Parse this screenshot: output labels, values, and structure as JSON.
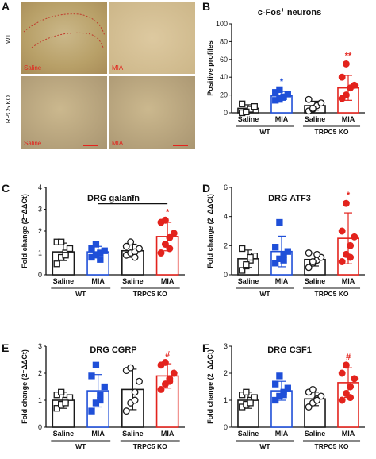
{
  "panel_a": {
    "label": "A",
    "row_labels": [
      "WT",
      "TRPC5 KO"
    ],
    "image_labels": [
      "Saline",
      "MIA",
      "Saline",
      "MIA"
    ]
  },
  "colors": {
    "black": "#1a1a1a",
    "blue": "#1f4fd8",
    "red": "#e3231d"
  },
  "chart_data": [
    {
      "panel": "B",
      "type": "bar",
      "title": "c-Fos+ neurons",
      "ylabel": "Positive profiles",
      "ylim": [
        0,
        100
      ],
      "yticks": [
        0,
        20,
        40,
        60,
        80,
        100
      ],
      "categories": [
        "Saline",
        "MIA",
        "Saline",
        "MIA"
      ],
      "groups": [
        "WT",
        "TRPC5 KO"
      ],
      "values": [
        5,
        19,
        8,
        28
      ],
      "errors": [
        4,
        5,
        5,
        14
      ],
      "points": [
        [
          0,
          2,
          4,
          7,
          10,
          1
        ],
        [
          14,
          15,
          18,
          21,
          23,
          26
        ],
        [
          2,
          4,
          8,
          11,
          15,
          5
        ],
        [
          16,
          20,
          28,
          31,
          40,
          55
        ]
      ],
      "annotations": [
        {
          "cat": 1,
          "text": "*"
        },
        {
          "cat": 3,
          "text": "**"
        }
      ]
    },
    {
      "panel": "C",
      "type": "bar",
      "title": "DRG galanin",
      "ylabel": "Fold change (2⁻ΔΔCt)",
      "ylim": [
        0,
        4
      ],
      "yticks": [
        0,
        1,
        2,
        3,
        4
      ],
      "categories": [
        "Saline",
        "MIA",
        "Saline",
        "MIA"
      ],
      "groups": [
        "WT",
        "TRPC5 KO"
      ],
      "values": [
        1.05,
        1.05,
        1.1,
        1.75
      ],
      "errors": [
        0.4,
        0.25,
        0.3,
        0.65
      ],
      "points": [
        [
          0.5,
          0.8,
          1.0,
          1.2,
          1.5,
          1.5,
          0.9
        ],
        [
          0.8,
          0.9,
          1.0,
          1.1,
          1.2,
          1.4,
          0.7
        ],
        [
          0.9,
          1.0,
          1.05,
          1.2,
          1.3,
          1.5,
          0.8
        ],
        [
          1.0,
          1.4,
          1.7,
          1.9,
          2.4,
          2.5,
          1.2
        ]
      ],
      "annotations": [
        {
          "cat": 3,
          "text": "*"
        }
      ],
      "bracket": {
        "from": 1,
        "to": 3,
        "y": 3.25,
        "text": "*"
      }
    },
    {
      "panel": "D",
      "type": "bar",
      "title": "DRG ATF3",
      "ylabel": "Fold change (2⁻ΔΔCt)",
      "ylim": [
        0,
        6
      ],
      "yticks": [
        0,
        2,
        4,
        6
      ],
      "categories": [
        "Saline",
        "MIA",
        "Saline",
        "MIA"
      ],
      "groups": [
        "WT",
        "TRPC5 KO"
      ],
      "values": [
        1.1,
        1.6,
        1.05,
        2.5
      ],
      "errors": [
        0.6,
        1.05,
        0.45,
        1.75
      ],
      "points": [
        [
          0.3,
          0.6,
          1.0,
          1.3,
          1.8,
          0.7,
          1.2
        ],
        [
          0.8,
          1.1,
          1.4,
          1.6,
          1.9,
          3.6,
          1.0
        ],
        [
          0.5,
          0.8,
          1.0,
          1.2,
          1.5,
          0.9,
          1.4
        ],
        [
          0.9,
          1.4,
          2.0,
          2.6,
          3.0,
          4.9,
          1.2
        ]
      ],
      "annotations": [
        {
          "cat": 3,
          "text": "*"
        }
      ]
    },
    {
      "panel": "E",
      "type": "bar",
      "title": "DRG CGRP",
      "ylabel": "Fold change (2⁻ΔΔCt)",
      "ylim": [
        0,
        3
      ],
      "yticks": [
        0,
        1,
        2,
        3
      ],
      "categories": [
        "Saline",
        "MIA",
        "Saline",
        "MIA"
      ],
      "groups": [
        "WT",
        "TRPC5 KO"
      ],
      "values": [
        1.0,
        1.35,
        1.4,
        1.9
      ],
      "errors": [
        0.3,
        0.6,
        0.75,
        0.45
      ],
      "points": [
        [
          0.7,
          0.85,
          1.0,
          1.1,
          1.2,
          1.3,
          0.9
        ],
        [
          0.6,
          0.9,
          1.2,
          1.5,
          1.9,
          2.3,
          1.0
        ],
        [
          0.6,
          0.9,
          1.3,
          1.7,
          2.1,
          2.2,
          1.0
        ],
        [
          1.4,
          1.6,
          1.8,
          2.0,
          2.3,
          2.4,
          1.7
        ]
      ],
      "annotations": [
        {
          "cat": 3,
          "text": "#"
        }
      ]
    },
    {
      "panel": "F",
      "type": "bar",
      "title": "DRG CSF1",
      "ylabel": "Fold change (2⁻ΔΔCt)",
      "ylim": [
        0,
        3
      ],
      "yticks": [
        0,
        1,
        2,
        3
      ],
      "categories": [
        "Saline",
        "MIA",
        "Saline",
        "MIA"
      ],
      "groups": [
        "WT",
        "TRPC5 KO"
      ],
      "values": [
        1.0,
        1.35,
        1.05,
        1.65
      ],
      "errors": [
        0.3,
        0.35,
        0.25,
        0.55
      ],
      "points": [
        [
          0.75,
          0.85,
          1.0,
          1.1,
          1.2,
          1.3,
          0.9
        ],
        [
          1.0,
          1.15,
          1.3,
          1.45,
          1.6,
          1.9,
          1.2
        ],
        [
          0.75,
          0.9,
          1.05,
          1.15,
          1.3,
          1.4,
          1.0
        ],
        [
          1.0,
          1.25,
          1.5,
          1.8,
          2.0,
          2.3,
          1.1
        ]
      ],
      "annotations": [
        {
          "cat": 3,
          "text": "#"
        }
      ]
    }
  ]
}
